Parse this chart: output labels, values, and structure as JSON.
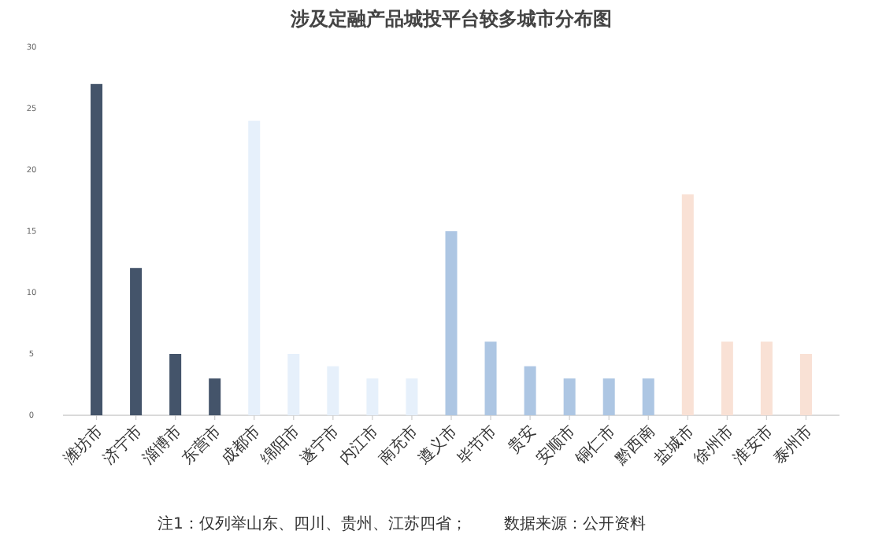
{
  "chart_data": {
    "type": "bar",
    "title": "涉及定融产品城投平台较多城市分布图",
    "categories": [
      "潍坊市",
      "济宁市",
      "淄博市",
      "东营市",
      "成都市",
      "绵阳市",
      "遂宁市",
      "内江市",
      "南充市",
      "遵义市",
      "毕节市",
      "贵安",
      "安顺市",
      "铜仁市",
      "黔西南",
      "盐城市",
      "徐州市",
      "淮安市",
      "泰州市"
    ],
    "values": [
      27,
      12,
      5,
      3,
      24,
      5,
      4,
      3,
      3,
      15,
      6,
      4,
      3,
      3,
      3,
      18,
      6,
      6,
      5
    ],
    "colors": [
      "#44546a",
      "#44546a",
      "#44546a",
      "#44546a",
      "#e6f0fb",
      "#e6f0fb",
      "#e6f0fb",
      "#e6f0fb",
      "#e6f0fb",
      "#adc6e3",
      "#adc6e3",
      "#adc6e3",
      "#adc6e3",
      "#adc6e3",
      "#adc6e3",
      "#f9e1d5",
      "#f9e1d5",
      "#f9e1d5",
      "#f9e1d5"
    ],
    "ylim": [
      0,
      30
    ],
    "yticks": [
      0,
      5,
      10,
      15,
      20,
      25,
      30
    ],
    "grid": false,
    "annotations": [
      "注1：仅列举山东、四川、贵州、江苏四省；",
      "数据来源：公开资料"
    ]
  }
}
